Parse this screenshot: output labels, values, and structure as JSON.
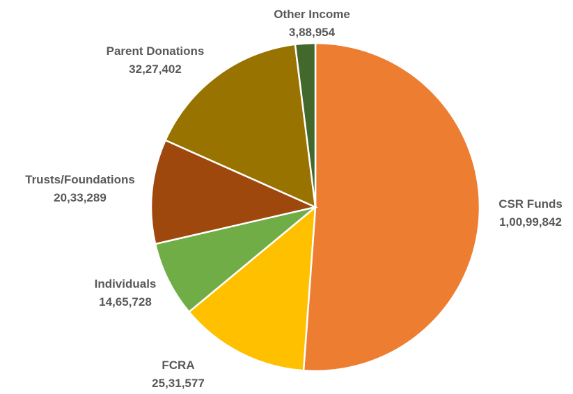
{
  "chart_data": {
    "type": "pie",
    "slices": [
      {
        "label": "CSR Funds",
        "value_label": "1,00,99,842",
        "value": 10099842,
        "color": "#ED7D31"
      },
      {
        "label": "FCRA",
        "value_label": "25,31,577",
        "value": 2531577,
        "color": "#FFC000"
      },
      {
        "label": "Individuals",
        "value_label": "14,65,728",
        "value": 1465728,
        "color": "#70AD47"
      },
      {
        "label": "Trusts/Foundations",
        "value_label": "20,33,289",
        "value": 2033289,
        "color": "#9E480E"
      },
      {
        "label": "Parent Donations",
        "value_label": "32,27,402",
        "value": 3227402,
        "color": "#997300"
      },
      {
        "label": "Other Income",
        "value_label": "3,88,954",
        "value": 388954,
        "color": "#43682B"
      }
    ]
  }
}
